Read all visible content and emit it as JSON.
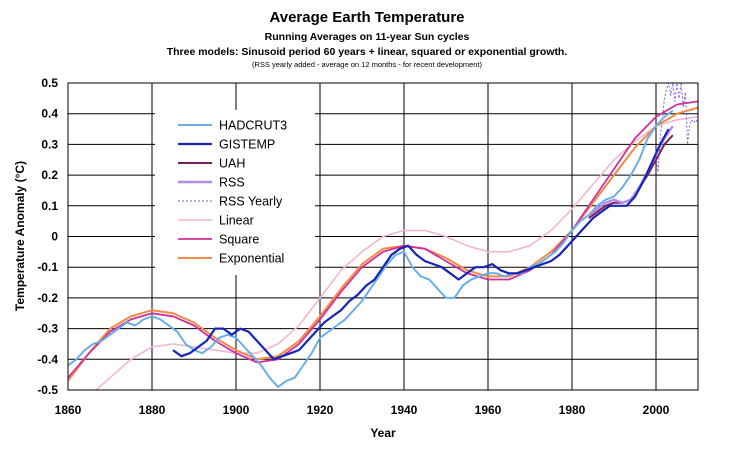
{
  "chart_data": {
    "type": "line",
    "title": "Average Earth Temperature",
    "subtitle": "Running Averages on 11-year Sun cycles",
    "subtitle2": "Three models: Sinusoid period 60 years + linear, squared or exponential growth.",
    "note": "(RSS yearly added - average on 12 months - for recent development)",
    "xlabel": "Year",
    "ylabel": "Temperature Anomaly (°C)",
    "xlim": [
      1860,
      2010
    ],
    "ylim": [
      -0.5,
      0.5
    ],
    "x_ticks": [
      1860,
      1880,
      1900,
      1920,
      1940,
      1960,
      1980,
      2000
    ],
    "y_ticks": [
      -0.5,
      -0.4,
      -0.3,
      -0.2,
      -0.1,
      0,
      0.1,
      0.2,
      0.3,
      0.4,
      0.5
    ],
    "grid": true,
    "legend_position": "upper-left",
    "series": [
      {
        "name": "HADCRUT3",
        "color": "#6aaee8",
        "width": 2,
        "dash": "",
        "x": [
          1860,
          1862,
          1864,
          1866,
          1868,
          1870,
          1872,
          1874,
          1876,
          1878,
          1880,
          1882,
          1884,
          1886,
          1888,
          1890,
          1892,
          1894,
          1896,
          1898,
          1900,
          1902,
          1904,
          1906,
          1908,
          1910,
          1912,
          1914,
          1916,
          1918,
          1920,
          1922,
          1924,
          1926,
          1928,
          1930,
          1932,
          1934,
          1936,
          1938,
          1940,
          1942,
          1944,
          1946,
          1948,
          1950,
          1952,
          1954,
          1956,
          1958,
          1960,
          1962,
          1964,
          1966,
          1968,
          1970,
          1972,
          1974,
          1976,
          1978,
          1980,
          1982,
          1984,
          1986,
          1988,
          1990,
          1992,
          1994,
          1996,
          1998,
          2000,
          2002,
          2004
        ],
        "y": [
          -0.42,
          -0.4,
          -0.37,
          -0.35,
          -0.34,
          -0.32,
          -0.3,
          -0.28,
          -0.29,
          -0.27,
          -0.26,
          -0.27,
          -0.29,
          -0.31,
          -0.35,
          -0.37,
          -0.38,
          -0.36,
          -0.33,
          -0.32,
          -0.33,
          -0.36,
          -0.39,
          -0.42,
          -0.46,
          -0.49,
          -0.47,
          -0.46,
          -0.42,
          -0.38,
          -0.33,
          -0.31,
          -0.29,
          -0.27,
          -0.24,
          -0.21,
          -0.17,
          -0.13,
          -0.09,
          -0.06,
          -0.05,
          -0.1,
          -0.13,
          -0.14,
          -0.17,
          -0.2,
          -0.2,
          -0.16,
          -0.14,
          -0.13,
          -0.12,
          -0.12,
          -0.13,
          -0.12,
          -0.12,
          -0.1,
          -0.09,
          -0.07,
          -0.05,
          -0.02,
          0.02,
          0.05,
          0.07,
          0.1,
          0.12,
          0.13,
          0.16,
          0.2,
          0.25,
          0.32,
          0.36,
          0.39,
          0.41
        ]
      },
      {
        "name": "GISTEMP",
        "color": "#1525b8",
        "width": 2.2,
        "dash": "",
        "x": [
          1885,
          1887,
          1889,
          1891,
          1893,
          1895,
          1897,
          1899,
          1901,
          1903,
          1905,
          1907,
          1909,
          1911,
          1913,
          1915,
          1917,
          1919,
          1921,
          1923,
          1925,
          1927,
          1929,
          1931,
          1933,
          1935,
          1937,
          1939,
          1941,
          1943,
          1945,
          1947,
          1949,
          1951,
          1953,
          1955,
          1957,
          1959,
          1961,
          1963,
          1965,
          1967,
          1969,
          1971,
          1973,
          1975,
          1977,
          1979,
          1981,
          1983,
          1985,
          1987,
          1989,
          1991,
          1993,
          1995,
          1997,
          1999,
          2001,
          2003
        ],
        "y": [
          -0.37,
          -0.39,
          -0.38,
          -0.36,
          -0.34,
          -0.3,
          -0.3,
          -0.32,
          -0.3,
          -0.31,
          -0.34,
          -0.37,
          -0.4,
          -0.39,
          -0.38,
          -0.37,
          -0.34,
          -0.31,
          -0.28,
          -0.26,
          -0.24,
          -0.21,
          -0.19,
          -0.16,
          -0.14,
          -0.1,
          -0.06,
          -0.04,
          -0.03,
          -0.06,
          -0.08,
          -0.09,
          -0.1,
          -0.12,
          -0.14,
          -0.12,
          -0.1,
          -0.1,
          -0.09,
          -0.11,
          -0.12,
          -0.12,
          -0.11,
          -0.1,
          -0.09,
          -0.08,
          -0.06,
          -0.03,
          0,
          0.03,
          0.06,
          0.08,
          0.1,
          0.1,
          0.1,
          0.13,
          0.18,
          0.24,
          0.3,
          0.35
        ]
      },
      {
        "name": "UAH",
        "color": "#7a1f5e",
        "width": 2,
        "dash": "",
        "x": [
          1984,
          1986,
          1988,
          1990,
          1992,
          1994,
          1996,
          1998,
          2000,
          2002,
          2004
        ],
        "y": [
          0.06,
          0.08,
          0.1,
          0.11,
          0.11,
          0.12,
          0.16,
          0.2,
          0.25,
          0.3,
          0.33
        ]
      },
      {
        "name": "RSS",
        "color": "#b48ce6",
        "width": 2.4,
        "dash": "",
        "x": [
          1984,
          1986,
          1988,
          1990,
          1992,
          1994,
          1996,
          1998,
          2000,
          2002,
          2004
        ],
        "y": [
          0.07,
          0.09,
          0.11,
          0.12,
          0.11,
          0.12,
          0.16,
          0.21,
          0.27,
          0.32,
          0.36
        ]
      },
      {
        "name": "RSS Yearly",
        "color": "#7a5ae0",
        "width": 1,
        "dash": "2,2",
        "x": [
          2000,
          2000.5,
          2001,
          2001.5,
          2002,
          2002.5,
          2003,
          2003.5,
          2004,
          2004.5,
          2005,
          2005.5,
          2006,
          2006.5,
          2007,
          2007.5,
          2008,
          2008.5,
          2009,
          2009.5,
          2010
        ],
        "y": [
          0.26,
          0.21,
          0.32,
          0.38,
          0.45,
          0.48,
          0.5,
          0.46,
          0.5,
          0.44,
          0.5,
          0.45,
          0.5,
          0.42,
          0.47,
          0.3,
          0.36,
          0.38,
          0.37,
          0.38,
          0.37
        ]
      },
      {
        "name": "Linear",
        "color": "#f2b6d5",
        "width": 1.6,
        "dash": "",
        "x": [
          1860,
          1870,
          1875,
          1880,
          1885,
          1890,
          1895,
          1900,
          1905,
          1910,
          1915,
          1920,
          1925,
          1930,
          1935,
          1940,
          1945,
          1950,
          1955,
          1960,
          1965,
          1970,
          1975,
          1980,
          1985,
          1990,
          1995,
          2000,
          2005,
          2010
        ],
        "y": [
          -0.58,
          -0.46,
          -0.4,
          -0.36,
          -0.35,
          -0.36,
          -0.37,
          -0.38,
          -0.38,
          -0.35,
          -0.29,
          -0.2,
          -0.11,
          -0.05,
          0,
          0.02,
          0.02,
          0,
          -0.03,
          -0.05,
          -0.05,
          -0.03,
          0.02,
          0.09,
          0.17,
          0.25,
          0.31,
          0.36,
          0.38,
          0.39
        ]
      },
      {
        "name": "Square",
        "color": "#d2309a",
        "width": 1.8,
        "dash": "",
        "x": [
          1860,
          1865,
          1870,
          1875,
          1880,
          1885,
          1890,
          1895,
          1900,
          1905,
          1910,
          1915,
          1920,
          1925,
          1930,
          1935,
          1940,
          1945,
          1950,
          1955,
          1960,
          1965,
          1970,
          1975,
          1980,
          1985,
          1990,
          1995,
          2000,
          2005,
          2010
        ],
        "y": [
          -0.46,
          -0.38,
          -0.31,
          -0.27,
          -0.25,
          -0.26,
          -0.29,
          -0.34,
          -0.38,
          -0.41,
          -0.4,
          -0.35,
          -0.27,
          -0.18,
          -0.1,
          -0.05,
          -0.03,
          -0.04,
          -0.08,
          -0.12,
          -0.14,
          -0.14,
          -0.11,
          -0.06,
          0.02,
          0.12,
          0.22,
          0.32,
          0.39,
          0.43,
          0.44
        ]
      },
      {
        "name": "Exponential",
        "color": "#f28a4a",
        "width": 2,
        "dash": "",
        "x": [
          1860,
          1865,
          1870,
          1875,
          1880,
          1885,
          1890,
          1895,
          1900,
          1905,
          1910,
          1915,
          1920,
          1925,
          1930,
          1935,
          1940,
          1945,
          1950,
          1955,
          1960,
          1965,
          1970,
          1975,
          1980,
          1985,
          1990,
          1995,
          2000,
          2005,
          2010
        ],
        "y": [
          -0.47,
          -0.38,
          -0.3,
          -0.26,
          -0.24,
          -0.25,
          -0.28,
          -0.33,
          -0.37,
          -0.4,
          -0.39,
          -0.34,
          -0.26,
          -0.17,
          -0.09,
          -0.04,
          -0.03,
          -0.04,
          -0.07,
          -0.11,
          -0.13,
          -0.13,
          -0.1,
          -0.05,
          0.02,
          0.11,
          0.2,
          0.29,
          0.36,
          0.4,
          0.42
        ]
      }
    ]
  }
}
